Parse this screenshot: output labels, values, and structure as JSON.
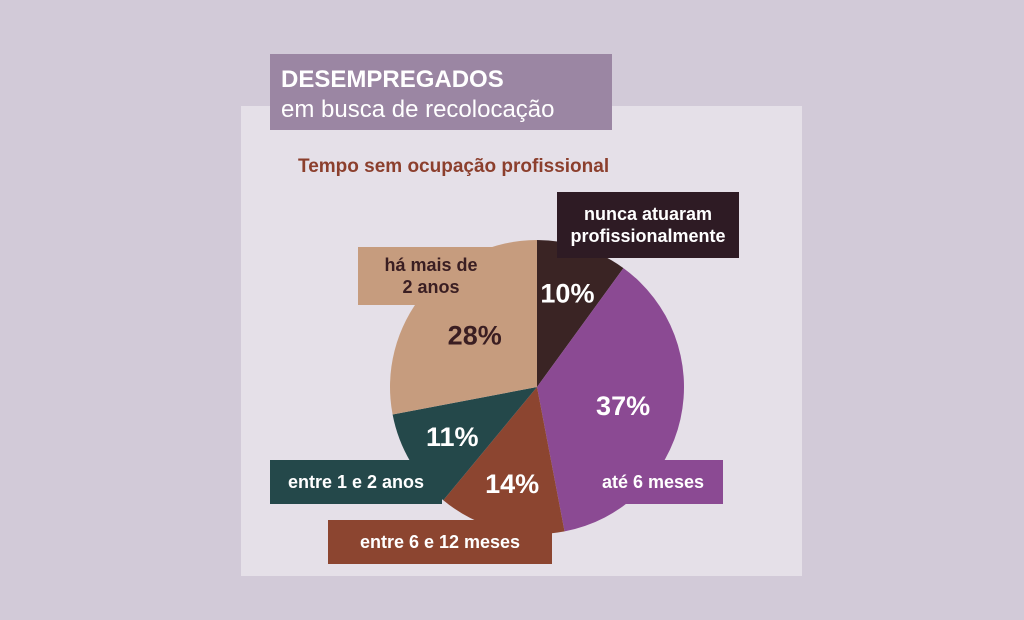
{
  "title": {
    "line1": "DESEMPREGADOS",
    "line2": "em busca de recolocação"
  },
  "subtitle": "Tempo sem ocupação profissional",
  "chart_data": {
    "type": "pie",
    "title": "Tempo sem ocupação profissional",
    "slices": [
      {
        "label": "nunca atuaram profissionalmente",
        "value": 10,
        "text": "10%",
        "color": "#3a2424",
        "text_color": "#ffffff"
      },
      {
        "label": "até 6 meses",
        "value": 37,
        "text": "37%",
        "color": "#8b4a93",
        "text_color": "#ffffff"
      },
      {
        "label": "entre 6 e 12 meses",
        "value": 14,
        "text": "14%",
        "color": "#8c4530",
        "text_color": "#ffffff"
      },
      {
        "label": "entre 1 e 2 anos",
        "value": 11,
        "text": "11%",
        "color": "#24484a",
        "text_color": "#ffffff"
      },
      {
        "label": "há mais de 2 anos",
        "value": 28,
        "text": "28%",
        "color": "#c69c7e",
        "text_color": "#3a1e22"
      }
    ]
  },
  "labels": {
    "nunca_line1": "nunca atuaram",
    "nunca_line2": "profissionalmente",
    "ate6": "até 6 meses",
    "entre6_12": "entre 6 e 12 meses",
    "entre1_2": "entre 1 e 2 anos",
    "hamais_line1": "há mais de",
    "hamais_line2": "2 anos"
  }
}
